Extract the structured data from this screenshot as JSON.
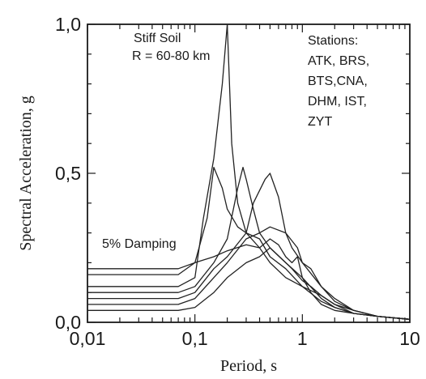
{
  "chart_data": {
    "type": "line",
    "xlabel": "Period, s",
    "ylabel": "Spectral Acceleration, g",
    "x_scale": "log",
    "xlim": [
      0.01,
      10
    ],
    "ylim": [
      0.0,
      1.0
    ],
    "x_ticks": [
      0.01,
      0.1,
      1,
      10
    ],
    "x_tick_labels": [
      "0,01",
      "0,1",
      "1",
      "10"
    ],
    "y_ticks": [
      0.0,
      0.5,
      1.0
    ],
    "y_tick_labels": [
      "0,0",
      "0,5",
      "1,0"
    ],
    "grid": false,
    "annotations": {
      "site": [
        "Stiff Soil",
        "R = 60-80 km"
      ],
      "stations": [
        "Stations:",
        "ATK, BRS,",
        "BTS,CNA,",
        "DHM, IST,",
        "ZYT"
      ],
      "damping": "5% Damping"
    },
    "series": [
      {
        "x": [
          0.01,
          0.07,
          0.1,
          0.12,
          0.15,
          0.18,
          0.2,
          0.22,
          0.25,
          0.3,
          0.4,
          0.5,
          0.7,
          1,
          1.5,
          2,
          3,
          5,
          10
        ],
        "y": [
          0.12,
          0.12,
          0.15,
          0.35,
          0.55,
          0.8,
          1.0,
          0.6,
          0.4,
          0.3,
          0.25,
          0.2,
          0.15,
          0.12,
          0.07,
          0.05,
          0.03,
          0.02,
          0.01
        ]
      },
      {
        "x": [
          0.01,
          0.07,
          0.1,
          0.13,
          0.15,
          0.18,
          0.2,
          0.25,
          0.3,
          0.4,
          0.5,
          0.7,
          1,
          1.5,
          2,
          3,
          5,
          10
        ],
        "y": [
          0.16,
          0.16,
          0.2,
          0.35,
          0.52,
          0.45,
          0.38,
          0.32,
          0.3,
          0.28,
          0.22,
          0.18,
          0.12,
          0.09,
          0.06,
          0.04,
          0.02,
          0.01
        ]
      },
      {
        "x": [
          0.01,
          0.07,
          0.1,
          0.15,
          0.2,
          0.25,
          0.28,
          0.3,
          0.35,
          0.4,
          0.5,
          0.7,
          1,
          1.5,
          2,
          3,
          5,
          10
        ],
        "y": [
          0.1,
          0.1,
          0.12,
          0.2,
          0.28,
          0.45,
          0.52,
          0.48,
          0.38,
          0.3,
          0.25,
          0.2,
          0.15,
          0.08,
          0.05,
          0.03,
          0.02,
          0.01
        ]
      },
      {
        "x": [
          0.01,
          0.07,
          0.1,
          0.15,
          0.2,
          0.3,
          0.35,
          0.45,
          0.5,
          0.6,
          0.7,
          0.8,
          1,
          1.5,
          2,
          3,
          5,
          10
        ],
        "y": [
          0.08,
          0.08,
          0.1,
          0.18,
          0.22,
          0.3,
          0.4,
          0.48,
          0.5,
          0.42,
          0.3,
          0.25,
          0.2,
          0.12,
          0.07,
          0.04,
          0.02,
          0.01
        ]
      },
      {
        "x": [
          0.01,
          0.07,
          0.1,
          0.15,
          0.2,
          0.3,
          0.4,
          0.5,
          0.7,
          0.9,
          1,
          1.2,
          1.5,
          2,
          3,
          5,
          10
        ],
        "y": [
          0.06,
          0.06,
          0.08,
          0.15,
          0.2,
          0.28,
          0.3,
          0.32,
          0.3,
          0.25,
          0.2,
          0.18,
          0.12,
          0.08,
          0.04,
          0.02,
          0.01
        ]
      },
      {
        "x": [
          0.01,
          0.07,
          0.1,
          0.15,
          0.2,
          0.3,
          0.4,
          0.5,
          0.6,
          0.7,
          0.8,
          0.9,
          1.0,
          1.2,
          1.5,
          2,
          3,
          5,
          10
        ],
        "y": [
          0.18,
          0.18,
          0.2,
          0.22,
          0.24,
          0.26,
          0.25,
          0.28,
          0.26,
          0.22,
          0.2,
          0.22,
          0.15,
          0.1,
          0.06,
          0.04,
          0.03,
          0.02,
          0.01
        ]
      },
      {
        "x": [
          0.01,
          0.07,
          0.1,
          0.15,
          0.2,
          0.3,
          0.4,
          0.5,
          0.7,
          0.8,
          1.0,
          1.2,
          1.5,
          2,
          3,
          5,
          10
        ],
        "y": [
          0.04,
          0.04,
          0.05,
          0.1,
          0.15,
          0.2,
          0.22,
          0.25,
          0.2,
          0.18,
          0.14,
          0.12,
          0.09,
          0.06,
          0.03,
          0.02,
          0.01
        ]
      }
    ]
  }
}
